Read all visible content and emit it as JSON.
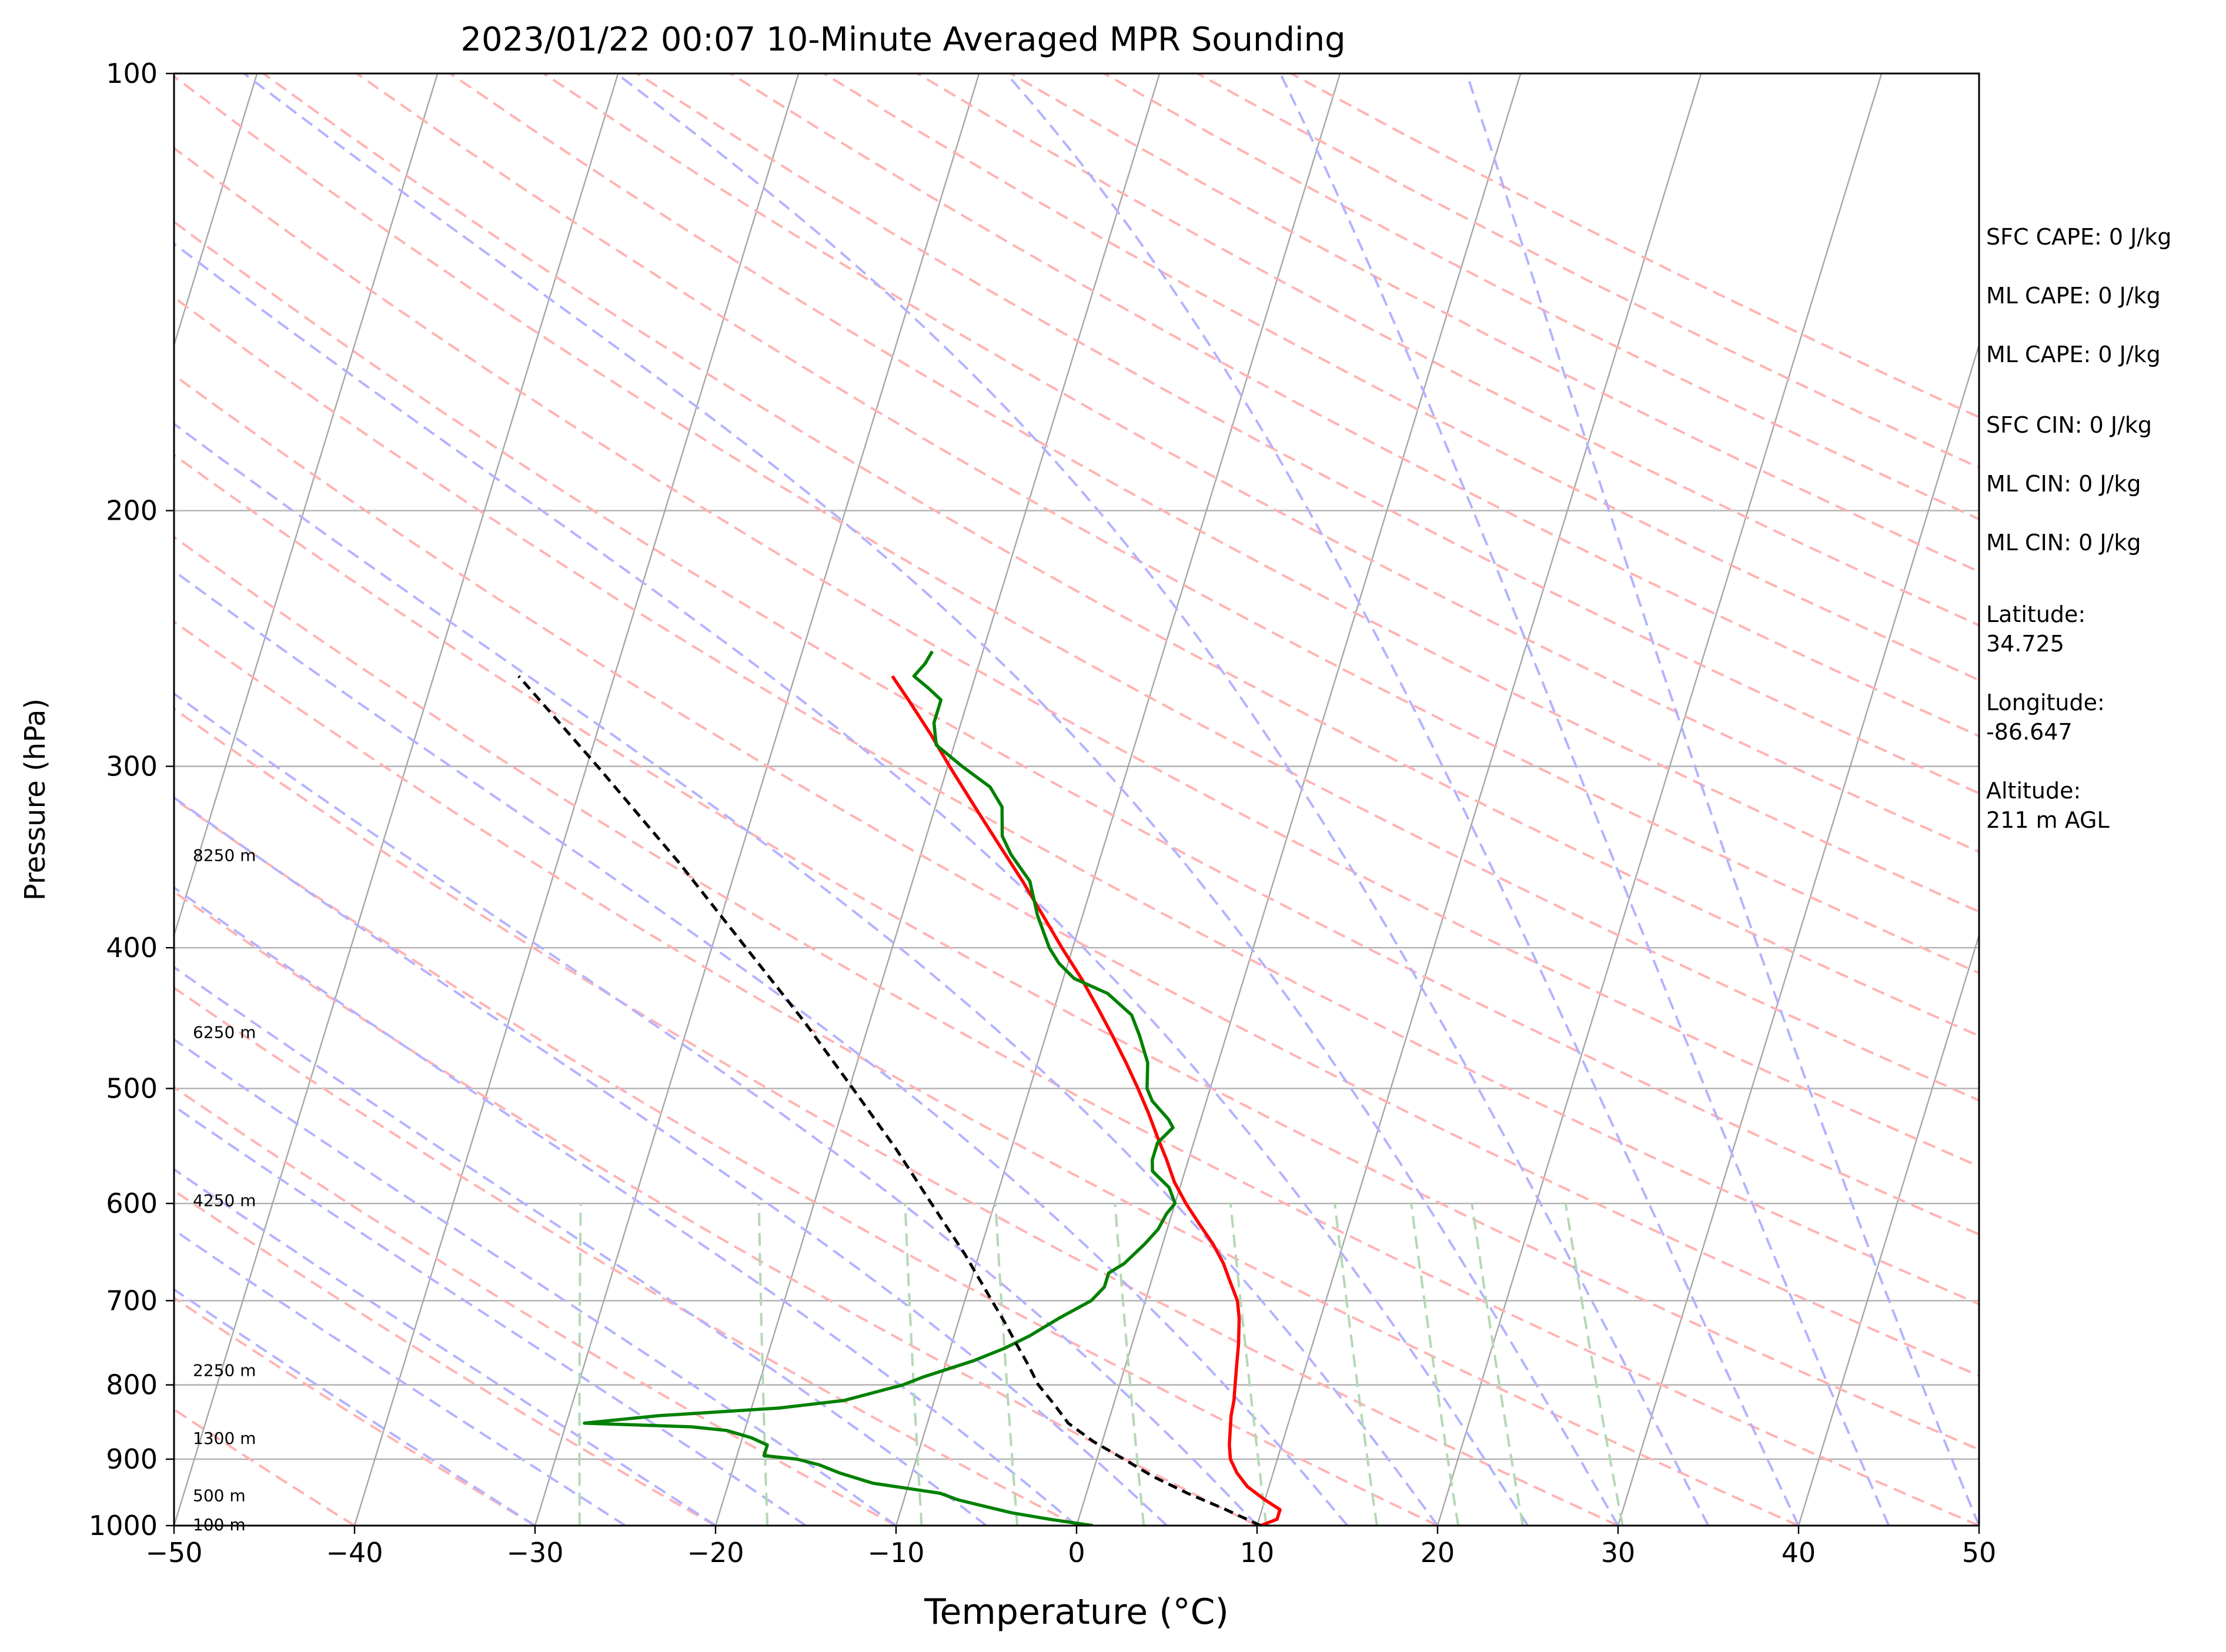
{
  "chart_data": {
    "type": "skew-t",
    "title": "2023/01/22 00:07 10-Minute Averaged MPR Sounding",
    "xlabel": "Temperature (°C)",
    "ylabel": "Pressure (hPa)",
    "xlim": [
      -50,
      50
    ],
    "ylim": [
      1000,
      100
    ],
    "y_scale": "log",
    "grid": true,
    "x_ticks": [
      -50,
      -40,
      -30,
      -20,
      -10,
      0,
      10,
      20,
      30,
      40,
      50
    ],
    "x_tick_labels": [
      "−50",
      "−40",
      "−30",
      "−20",
      "−10",
      "0",
      "10",
      "20",
      "30",
      "40",
      "50"
    ],
    "y_ticks": [
      1000,
      900,
      800,
      700,
      600,
      500,
      400,
      300,
      200,
      100
    ],
    "y_tick_labels": [
      "1000",
      "900",
      "800",
      "700",
      "600",
      "500",
      "400",
      "300",
      "200",
      "100"
    ],
    "colors": {
      "temperature": "#ff0000",
      "dewpoint": "#008000",
      "parcel": "#000000",
      "isotherm": "#a6a6a6",
      "dry_adiabat": "#ffb3b3",
      "moist_adiabat": "#b3b3ff",
      "mixing_ratio": "#b3d9b3"
    },
    "series": [
      {
        "key": "temperature",
        "points": [
          [
            1000,
            10.2
          ],
          [
            990,
            11.0
          ],
          [
            975,
            11.0
          ],
          [
            960,
            10.0
          ],
          [
            940,
            8.8
          ],
          [
            920,
            8.0
          ],
          [
            900,
            7.4
          ],
          [
            880,
            7.1
          ],
          [
            860,
            6.9
          ],
          [
            840,
            6.7
          ],
          [
            820,
            6.6
          ],
          [
            800,
            6.4
          ],
          [
            780,
            6.2
          ],
          [
            750,
            5.9
          ],
          [
            720,
            5.5
          ],
          [
            700,
            5.1
          ],
          [
            680,
            4.4
          ],
          [
            660,
            3.7
          ],
          [
            640,
            2.8
          ],
          [
            620,
            1.7
          ],
          [
            600,
            0.6
          ],
          [
            580,
            -0.4
          ],
          [
            560,
            -1.2
          ],
          [
            540,
            -2.1
          ],
          [
            520,
            -3.0
          ],
          [
            500,
            -4.0
          ],
          [
            480,
            -5.1
          ],
          [
            460,
            -6.3
          ],
          [
            440,
            -7.6
          ],
          [
            420,
            -9.0
          ],
          [
            400,
            -10.6
          ],
          [
            380,
            -12.2
          ],
          [
            360,
            -13.9
          ],
          [
            340,
            -15.8
          ],
          [
            320,
            -17.8
          ],
          [
            300,
            -19.9
          ],
          [
            285,
            -21.5
          ],
          [
            270,
            -23.3
          ],
          [
            260,
            -24.6
          ]
        ]
      },
      {
        "key": "dewpoint",
        "points": [
          [
            1000,
            0.9
          ],
          [
            990,
            -1.6
          ],
          [
            980,
            -3.8
          ],
          [
            970,
            -5.4
          ],
          [
            960,
            -7.0
          ],
          [
            950,
            -8.1
          ],
          [
            945,
            -9.4
          ],
          [
            935,
            -12.0
          ],
          [
            920,
            -14.0
          ],
          [
            908,
            -15.3
          ],
          [
            900,
            -16.6
          ],
          [
            895,
            -18.5
          ],
          [
            880,
            -18.5
          ],
          [
            870,
            -19.5
          ],
          [
            860,
            -21.0
          ],
          [
            855,
            -23.0
          ],
          [
            850,
            -29.0
          ],
          [
            845,
            -27.0
          ],
          [
            840,
            -25.0
          ],
          [
            830,
            -18.5
          ],
          [
            820,
            -15.0
          ],
          [
            800,
            -12.0
          ],
          [
            790,
            -11.0
          ],
          [
            770,
            -8.5
          ],
          [
            755,
            -7.0
          ],
          [
            740,
            -5.8
          ],
          [
            720,
            -4.5
          ],
          [
            700,
            -3.0
          ],
          [
            685,
            -2.5
          ],
          [
            670,
            -2.5
          ],
          [
            660,
            -1.8
          ],
          [
            640,
            -1.0
          ],
          [
            625,
            -0.5
          ],
          [
            610,
            -0.3
          ],
          [
            600,
            0.0
          ],
          [
            585,
            -0.6
          ],
          [
            570,
            -1.8
          ],
          [
            560,
            -2.0
          ],
          [
            545,
            -2.0
          ],
          [
            532,
            -1.4
          ],
          [
            525,
            -1.8
          ],
          [
            510,
            -3.0
          ],
          [
            500,
            -3.5
          ],
          [
            480,
            -3.9
          ],
          [
            460,
            -4.8
          ],
          [
            445,
            -5.6
          ],
          [
            430,
            -7.3
          ],
          [
            420,
            -9.4
          ],
          [
            410,
            -10.5
          ],
          [
            400,
            -11.3
          ],
          [
            380,
            -12.5
          ],
          [
            360,
            -13.5
          ],
          [
            345,
            -15.0
          ],
          [
            335,
            -15.8
          ],
          [
            320,
            -16.3
          ],
          [
            310,
            -17.3
          ],
          [
            300,
            -19.2
          ],
          [
            290,
            -21.0
          ],
          [
            280,
            -21.5
          ],
          [
            270,
            -21.5
          ],
          [
            265,
            -22.4
          ],
          [
            260,
            -23.4
          ],
          [
            255,
            -23.0
          ],
          [
            250,
            -22.8
          ]
        ]
      },
      {
        "key": "parcel",
        "points": [
          [
            1000,
            10.2
          ],
          [
            975,
            8.0
          ],
          [
            950,
            5.6
          ],
          [
            925,
            3.4
          ],
          [
            900,
            1.5
          ],
          [
            875,
            -0.5
          ],
          [
            850,
            -2.2
          ],
          [
            825,
            -3.3
          ],
          [
            800,
            -4.5
          ],
          [
            775,
            -5.4
          ],
          [
            750,
            -6.4
          ],
          [
            725,
            -7.4
          ],
          [
            700,
            -8.5
          ],
          [
            650,
            -10.8
          ],
          [
            600,
            -13.5
          ],
          [
            550,
            -16.4
          ],
          [
            500,
            -19.8
          ],
          [
            450,
            -23.6
          ],
          [
            400,
            -28.1
          ],
          [
            350,
            -33.2
          ],
          [
            300,
            -39.4
          ],
          [
            260,
            -45.3
          ]
        ]
      }
    ],
    "height_labels": [
      {
        "text": "100 m",
        "p": 1000
      },
      {
        "text": "500 m",
        "p": 955
      },
      {
        "text": "1300 m",
        "p": 872
      },
      {
        "text": "2250 m",
        "p": 783
      },
      {
        "text": "4250 m",
        "p": 598
      },
      {
        "text": "6250 m",
        "p": 458
      },
      {
        "text": "8250 m",
        "p": 346
      }
    ],
    "annotations": [
      {
        "lines": [
          "SFC CAPE: 0 J/kg"
        ]
      },
      {
        "lines": [
          "ML CAPE: 0 J/kg"
        ]
      },
      {
        "lines": [
          "ML CAPE: 0 J/kg"
        ]
      },
      {
        "lines": [
          "SFC CIN: 0 J/kg"
        ]
      },
      {
        "lines": [
          "ML CIN: 0 J/kg"
        ]
      },
      {
        "lines": [
          "ML CIN: 0 J/kg"
        ]
      },
      {
        "lines": [
          "Latitude:",
          "34.725"
        ]
      },
      {
        "lines": [
          "Longitude:",
          "-86.647"
        ]
      },
      {
        "lines": [
          "Altitude:",
          "211 m AGL"
        ]
      }
    ]
  }
}
